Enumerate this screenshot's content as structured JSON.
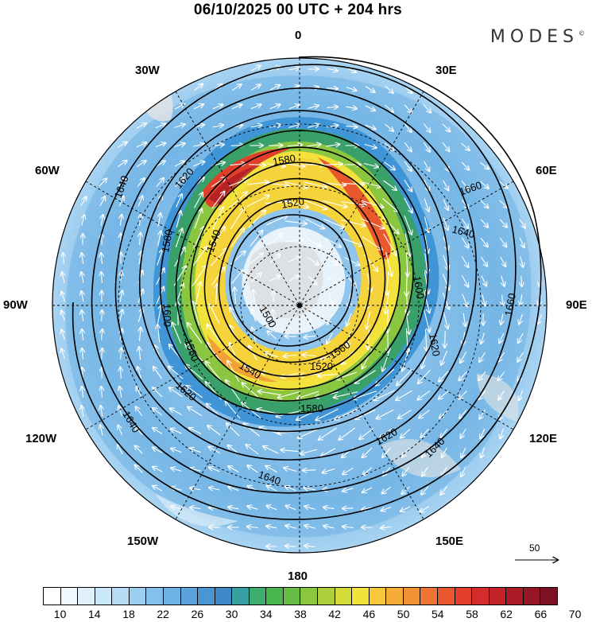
{
  "title": "06/10/2025  00 UTC  + 204 hrs",
  "brand": "MODES",
  "brand_mark": "©",
  "meridians": {
    "m0": "0",
    "m30e": "30E",
    "m60e": "60E",
    "m90e": "90E",
    "m120e": "120E",
    "m150e": "150E",
    "m180": "180",
    "m150w": "150W",
    "m120w": "120W",
    "m90w": "90W",
    "m60w": "60W",
    "m30w": "30W"
  },
  "contours": {
    "c1500": "1500",
    "c1520a": "1520",
    "c1520b": "1520",
    "c1520c": "1520",
    "c1540a": "1540",
    "c1540b": "1540",
    "c1560a": "1560",
    "c1560b": "1560",
    "c1580a": "1580",
    "c1580b": "1580",
    "c1580c": "1580",
    "c1600a": "1600",
    "c1600b": "1600",
    "c1620a": "1620",
    "c1620b": "1620",
    "c1620c": "1620",
    "c1620d": "1620",
    "c1640a": "1640",
    "c1640b": "1640",
    "c1640c": "1640",
    "c1640d": "1640",
    "c1640e": "1640",
    "c1660a": "1660",
    "c1660b": "1660"
  },
  "wind_reference": "50",
  "colorbar": {
    "labels": [
      "10",
      "14",
      "18",
      "22",
      "26",
      "30",
      "34",
      "38",
      "42",
      "46",
      "50",
      "54",
      "58",
      "62",
      "66",
      "70"
    ],
    "colors": [
      "#ffffff",
      "#f0f8fe",
      "#e0f1fc",
      "#cce9f9",
      "#b5dcf4",
      "#9ccfef",
      "#84c1ea",
      "#6cb2e3",
      "#5aa3dc",
      "#4b95d3",
      "#3f89c8",
      "#37a0a0",
      "#3caf70",
      "#49b54e",
      "#68bd45",
      "#8ac640",
      "#aecf3c",
      "#d3da3a",
      "#f2e23b",
      "#f7c93a",
      "#f5ad38",
      "#f29135",
      "#ee7431",
      "#e9582d",
      "#e13f2b",
      "#d42c2a",
      "#c22228",
      "#ad1b27",
      "#951526",
      "#7d1024"
    ]
  }
}
